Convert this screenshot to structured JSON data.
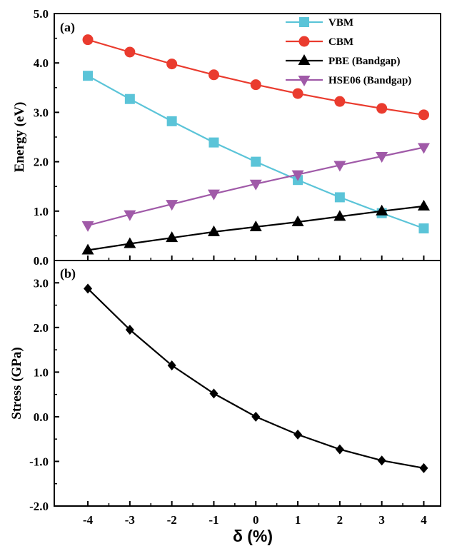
{
  "chart_data": [
    {
      "panel_label": "(a)",
      "type": "line",
      "ylabel": "Energy (eV)",
      "ylim": [
        0.0,
        5.0
      ],
      "yticks": [
        "0.0",
        "1.0",
        "2.0",
        "3.0",
        "4.0",
        "5.0"
      ],
      "x": [
        -4,
        -3,
        -2,
        -1,
        0,
        1,
        2,
        3,
        4
      ],
      "legend_position": "top-right",
      "series": [
        {
          "name": "VBM",
          "color": "#5bc4d8",
          "marker": "square",
          "values": [
            3.74,
            3.27,
            2.82,
            2.39,
            2.0,
            1.63,
            1.28,
            0.96,
            0.65
          ]
        },
        {
          "name": "CBM",
          "color": "#ea3b2e",
          "marker": "circle",
          "values": [
            4.47,
            4.22,
            3.98,
            3.76,
            3.56,
            3.38,
            3.22,
            3.08,
            2.95
          ]
        },
        {
          "name": "PBE (Bandgap)",
          "color": "#000000",
          "marker": "triangle-up",
          "values": [
            0.21,
            0.34,
            0.46,
            0.58,
            0.68,
            0.78,
            0.89,
            1.0,
            1.1
          ]
        },
        {
          "name": "HSE06 (Bandgap)",
          "color": "#a05aa8",
          "marker": "triangle-down",
          "values": [
            0.71,
            0.93,
            1.14,
            1.35,
            1.55,
            1.74,
            1.93,
            2.11,
            2.29
          ]
        }
      ]
    },
    {
      "panel_label": "(b)",
      "type": "line",
      "ylabel": "Stress (GPa)",
      "ylim": [
        -2.0,
        3.5
      ],
      "yticks": [
        "-2.0",
        "-1.0",
        "0.0",
        "1.0",
        "2.0",
        "3.0"
      ],
      "x": [
        -4,
        -3,
        -2,
        -1,
        0,
        1,
        2,
        3,
        4
      ],
      "xlabel": "δ (%)",
      "xticks": [
        "-4",
        "-3",
        "-2",
        "-1",
        "0",
        "1",
        "2",
        "3",
        "4"
      ],
      "xlim": [
        -4.8,
        4.4
      ],
      "series": [
        {
          "color": "#000000",
          "marker": "diamond",
          "values": [
            2.87,
            1.95,
            1.15,
            0.52,
            0.0,
            -0.4,
            -0.73,
            -0.98,
            -1.15
          ]
        }
      ]
    }
  ]
}
